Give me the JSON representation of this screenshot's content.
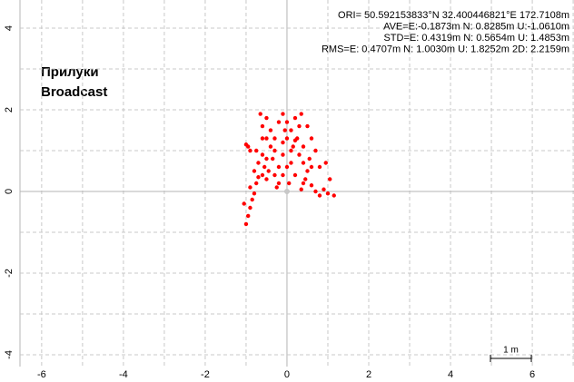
{
  "chart_data": {
    "type": "scatter",
    "title": "Прилуки",
    "subtitle": "Broadcast",
    "annotations": [
      "ORI= 50.592153833°N  32.400446821°E 172.7108m",
      "AVE=E:-0.1873m N: 0.8285m U:-1.0610m",
      "STD=E: 0.4319m N: 0.5654m U: 1.4853m",
      "RMS=E: 0.4707m N: 1.0030m U: 1.8252m 2D: 2.2159m"
    ],
    "xlim": [
      -6.53,
      7.02
    ],
    "ylim": [
      -4.29,
      4.69
    ],
    "xticks": [
      -6,
      -4,
      -2,
      0,
      2,
      4,
      6
    ],
    "yticks": [
      -4,
      -2,
      0,
      2,
      4
    ],
    "xgrid": [
      -6,
      -5,
      -4,
      -3,
      -2,
      -1,
      0,
      1,
      2,
      3,
      4,
      5,
      6,
      7
    ],
    "ygrid": [
      -4,
      -3,
      -2,
      -1,
      0,
      1,
      2,
      3,
      4
    ],
    "grid": true,
    "scale_label": "1 m",
    "scale_length": 1,
    "series": [
      {
        "color": "#ff0000",
        "x": [
          -1.0,
          -0.95,
          -0.9,
          -1.05,
          -0.85,
          -0.8,
          -0.9,
          -0.75,
          -0.7,
          -0.8,
          -0.95,
          -0.75,
          -0.6,
          -0.7,
          -0.55,
          -0.6,
          -0.5,
          -0.45,
          -0.35,
          -0.4,
          -0.5,
          -0.6,
          -0.65,
          -0.5,
          -0.4,
          -0.3,
          -0.2,
          -0.1,
          0.0,
          0.1,
          0.2,
          0.35,
          0.3,
          0.25,
          0.15,
          0.3,
          0.4,
          0.5,
          0.45,
          0.6,
          0.7,
          0.8,
          0.9,
          1.0,
          1.15,
          1.05,
          0.95,
          0.8,
          0.6,
          0.4,
          0.2,
          0.1,
          -0.1,
          -0.2,
          -0.3,
          -0.2,
          -0.1,
          0.0,
          0.1,
          -0.1,
          -0.3,
          -0.5,
          -0.6,
          -0.9,
          -1.0,
          0.0,
          0.2,
          0.05,
          -0.25,
          0.35,
          0.55,
          0.7,
          0.4,
          0.6,
          0.5,
          -0.05
        ],
        "values": [
          -0.8,
          -0.6,
          -0.4,
          -0.3,
          -0.2,
          -0.05,
          0.1,
          0.2,
          0.35,
          0.5,
          1.1,
          1.0,
          0.9,
          0.7,
          0.6,
          0.4,
          0.3,
          0.5,
          0.8,
          1.1,
          1.3,
          1.6,
          1.9,
          1.8,
          1.5,
          1.3,
          1.7,
          1.9,
          1.7,
          1.5,
          1.8,
          1.9,
          1.6,
          1.3,
          1.1,
          0.9,
          0.7,
          0.5,
          0.3,
          0.15,
          0.0,
          -0.1,
          0.05,
          -0.05,
          -0.1,
          0.3,
          0.7,
          0.6,
          0.6,
          0.2,
          0.4,
          0.7,
          0.9,
          0.6,
          0.4,
          0.2,
          0.4,
          0.6,
          1.0,
          1.2,
          1.0,
          0.8,
          1.3,
          1.0,
          1.15,
          1.3,
          1.25,
          0.2,
          0.1,
          0.05,
          0.8,
          1.0,
          1.1,
          1.3,
          1.6,
          1.5
        ]
      }
    ]
  }
}
